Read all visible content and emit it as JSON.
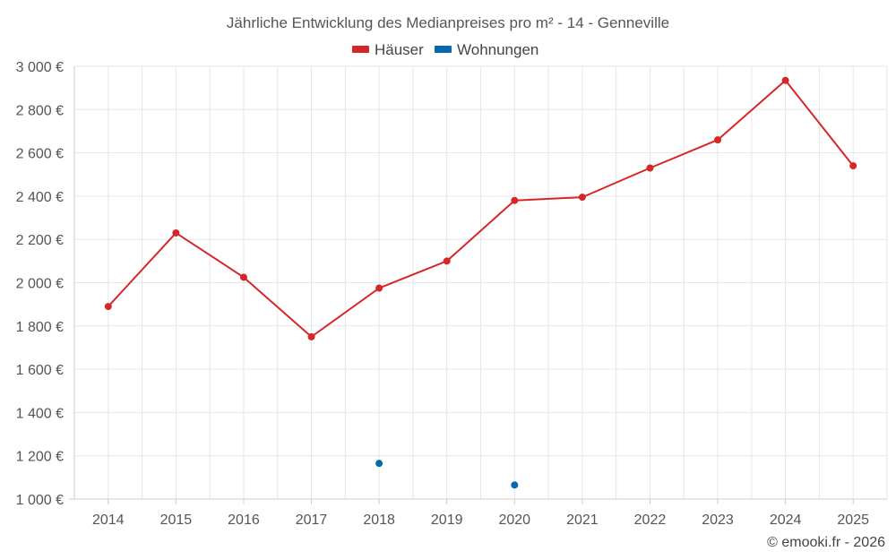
{
  "chart_data": {
    "type": "line",
    "title": "Jährliche Entwicklung des Medianpreises pro m² - 14 - Genneville",
    "categories": [
      "2014",
      "2015",
      "2016",
      "2017",
      "2018",
      "2019",
      "2020",
      "2021",
      "2022",
      "2023",
      "2024",
      "2025"
    ],
    "series": [
      {
        "name": "Häuser",
        "color": "#d62728",
        "values": [
          1890,
          2230,
          2025,
          1750,
          1975,
          2100,
          2380,
          2395,
          2530,
          2660,
          2935,
          2540
        ]
      },
      {
        "name": "Wohnungen",
        "color": "#0868ac",
        "values": [
          null,
          null,
          null,
          null,
          1165,
          null,
          1065,
          null,
          null,
          null,
          null,
          null
        ]
      }
    ],
    "ylim": [
      1000,
      3000
    ],
    "yticks": [
      1000,
      1200,
      1400,
      1600,
      1800,
      2000,
      2200,
      2400,
      2600,
      2800,
      3000
    ],
    "ytick_labels": [
      "1 000 €",
      "1 200 €",
      "1 400 €",
      "1 600 €",
      "1 800 €",
      "2 000 €",
      "2 200 €",
      "2 400 €",
      "2 600 €",
      "2 800 €",
      "3 000 €"
    ],
    "xlabel": "",
    "ylabel": "",
    "grid": true,
    "legend_position": "top-center"
  },
  "copyright": "© emooki.fr - 2026"
}
